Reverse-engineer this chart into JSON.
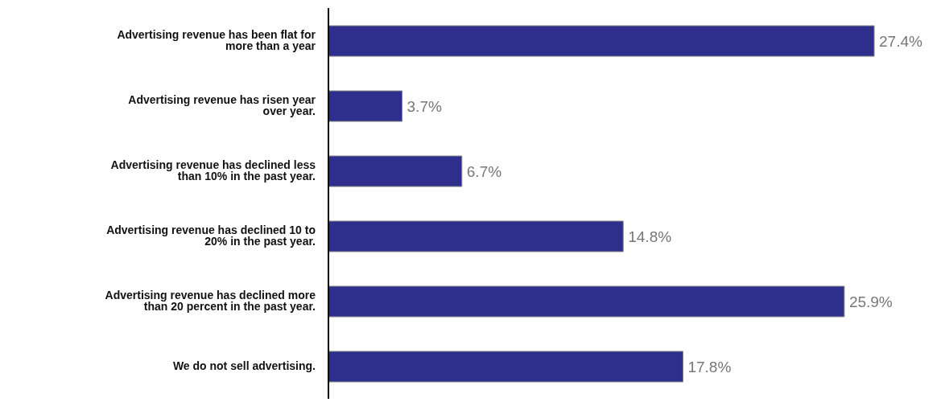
{
  "chart_data": {
    "type": "bar",
    "orientation": "horizontal",
    "relative": false,
    "categories": [
      "Advertising revenue has been flat for more than a year",
      "Advertising revenue has risen year over year.",
      "Advertising revenue has declined less than 10% in the past year.",
      "Advertising revenue has declined 10 to 20% in the past year.",
      "Advertising revenue has declined more than 20 percent in the past year.",
      "We do not sell advertising."
    ],
    "values": [
      27.4,
      3.7,
      6.7,
      14.8,
      25.9,
      17.8
    ],
    "value_labels": [
      "27.4%",
      "3.7%",
      "6.7%",
      "14.8%",
      "25.9%",
      "17.8%"
    ],
    "color": "#2e2e8c",
    "grid": false,
    "legend": false
  }
}
